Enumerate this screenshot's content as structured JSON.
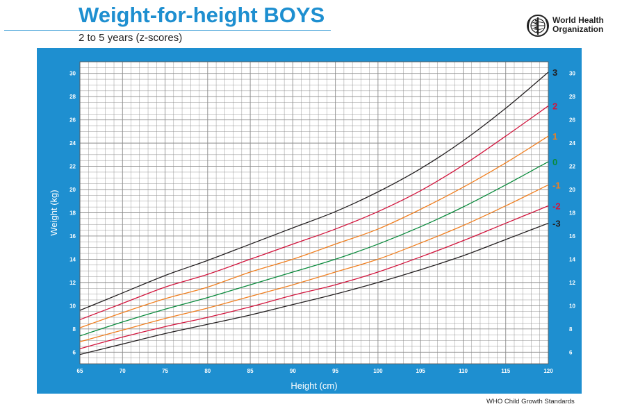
{
  "header": {
    "title": "Weight-for-height BOYS",
    "subtitle": "2 to 5 years (z-scores)"
  },
  "logo": {
    "line1": "World Health",
    "line2": "Organization",
    "icon": "who-emblem-icon"
  },
  "footer": {
    "text": "WHO Child Growth Standards"
  },
  "colors": {
    "frame": "#1e8fd0",
    "grid": "#8a8a8a",
    "z3": "#231f20",
    "z2": "#d2143c",
    "z1": "#f07f20",
    "z0": "#0a8a3c"
  },
  "chart_data": {
    "type": "line",
    "xlabel": "Height (cm)",
    "ylabel": "Weight (kg)",
    "xlim": [
      65,
      120
    ],
    "ylim": [
      5,
      31
    ],
    "x_ticks": [
      65,
      70,
      75,
      80,
      85,
      90,
      95,
      100,
      105,
      110,
      115,
      120
    ],
    "y_ticks": [
      6,
      8,
      10,
      12,
      14,
      16,
      18,
      20,
      22,
      24,
      26,
      28,
      30
    ],
    "grid": true,
    "x": [
      65,
      70,
      75,
      80,
      85,
      90,
      95,
      100,
      105,
      110,
      115,
      120
    ],
    "series": [
      {
        "name": "3",
        "color": "#231f20",
        "values": [
          9.6,
          11.1,
          12.6,
          13.9,
          15.3,
          16.7,
          18.1,
          19.8,
          21.8,
          24.2,
          27.0,
          30.1
        ]
      },
      {
        "name": "2",
        "color": "#d2143c",
        "values": [
          8.8,
          10.2,
          11.6,
          12.7,
          14.0,
          15.3,
          16.6,
          18.1,
          19.9,
          22.1,
          24.6,
          27.2
        ]
      },
      {
        "name": "1",
        "color": "#f07f20",
        "values": [
          8.1,
          9.4,
          10.6,
          11.6,
          12.9,
          14.0,
          15.3,
          16.6,
          18.3,
          20.2,
          22.3,
          24.6
        ]
      },
      {
        "name": "0",
        "color": "#0a8a3c",
        "values": [
          7.4,
          8.6,
          9.7,
          10.7,
          11.8,
          12.9,
          14.0,
          15.3,
          16.8,
          18.5,
          20.4,
          22.4
        ]
      },
      {
        "name": "-1",
        "color": "#f07f20",
        "values": [
          6.9,
          7.9,
          8.9,
          9.8,
          10.8,
          11.8,
          12.9,
          14.0,
          15.4,
          16.9,
          18.6,
          20.4
        ]
      },
      {
        "name": "-2",
        "color": "#d2143c",
        "values": [
          6.3,
          7.3,
          8.2,
          9.0,
          9.9,
          10.9,
          11.8,
          12.9,
          14.2,
          15.6,
          17.1,
          18.6
        ]
      },
      {
        "name": "-3",
        "color": "#231f20",
        "values": [
          5.8,
          6.7,
          7.6,
          8.4,
          9.2,
          10.1,
          11.0,
          12.0,
          13.1,
          14.3,
          15.7,
          17.1
        ]
      }
    ]
  }
}
